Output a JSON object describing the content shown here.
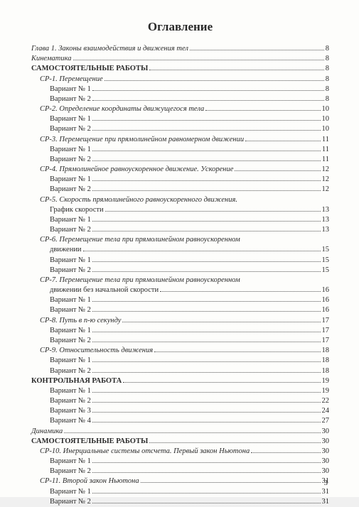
{
  "title": "Оглавление",
  "pageNumber": "3",
  "text_color": "#2a2a2a",
  "background_color": "#fdfdfb",
  "fonts": {
    "title_size": 17,
    "line_size": 10.5
  },
  "lines": [
    {
      "label": "Глава 1. Законы взаимодействия и движения тел",
      "page": "8",
      "italic": true,
      "indent": 0
    },
    {
      "label": "Кинематика",
      "page": "8",
      "italic": true,
      "indent": 0
    },
    {
      "label": "САМОСТОЯТЕЛЬНЫЕ РАБОТЫ",
      "page": "8",
      "bold": true,
      "indent": 0
    },
    {
      "label": "СР-1. Перемещение",
      "page": "8",
      "italic": true,
      "indent": 1,
      "prefixItalic": true
    },
    {
      "label": "Вариант № 1",
      "page": "8",
      "indent": 2
    },
    {
      "label": "Вариант № 2",
      "page": "8",
      "indent": 2
    },
    {
      "label": "СР-2. Определение координаты движущегося тела",
      "page": "10",
      "italic": true,
      "indent": 1,
      "prefixItalic": true
    },
    {
      "label": "Вариант № 1",
      "page": "10",
      "indent": 2
    },
    {
      "label": "Вариант № 2",
      "page": "10",
      "indent": 2
    },
    {
      "label": "СР-3. Перемещение при прямолинейном равномерном движении",
      "page": "11",
      "italic": true,
      "indent": 1,
      "prefixItalic": true
    },
    {
      "label": "Вариант № 1",
      "page": "11",
      "indent": 2
    },
    {
      "label": "Вариант № 2",
      "page": "11",
      "indent": 2
    },
    {
      "label": "СР-4. Прямолинейное равноускоренное движение. Ускорение",
      "page": "12",
      "italic": true,
      "indent": 1,
      "prefixItalic": true
    },
    {
      "label": "Вариант № 1",
      "page": "12",
      "indent": 2
    },
    {
      "label": "Вариант № 2",
      "page": "12",
      "indent": 2
    },
    {
      "label": "СР-5. Скорость прямолинейного равноускоренного движения.",
      "page": "",
      "italic": true,
      "indent": 1,
      "prefixItalic": true,
      "noDots": true
    },
    {
      "label": "График скорости",
      "page": "13",
      "indent": 2
    },
    {
      "label": "Вариант № 1",
      "page": "13",
      "indent": 2
    },
    {
      "label": "Вариант № 2",
      "page": "13",
      "indent": 2
    },
    {
      "label": "СР-6. Перемещение тела при прямолинейном равноускоренном",
      "page": "",
      "italic": true,
      "indent": 1,
      "prefixItalic": true,
      "noDots": true
    },
    {
      "label": "движении",
      "page": "15",
      "indent": 2
    },
    {
      "label": "Вариант № 1",
      "page": "15",
      "indent": 2
    },
    {
      "label": "Вариант № 2",
      "page": "15",
      "indent": 2
    },
    {
      "label": "СР-7. Перемещение тела при прямолинейном равноускоренном",
      "page": "",
      "italic": true,
      "indent": 1,
      "prefixItalic": true,
      "noDots": true
    },
    {
      "label": "движении без начальной скорости",
      "page": "16",
      "indent": 2
    },
    {
      "label": "Вариант № 1",
      "page": "16",
      "indent": 2
    },
    {
      "label": "Вариант № 2",
      "page": "16",
      "indent": 2
    },
    {
      "label": "СР-8. Путь в n-ю секунду",
      "page": "17",
      "italic": true,
      "indent": 1,
      "prefixItalic": true
    },
    {
      "label": "Вариант № 1",
      "page": "17",
      "indent": 2
    },
    {
      "label": "Вариант № 2",
      "page": "17",
      "indent": 2
    },
    {
      "label": "СР-9. Относительность движения",
      "page": "18",
      "italic": true,
      "indent": 1,
      "prefixItalic": true
    },
    {
      "label": "Вариант № 1",
      "page": "18",
      "indent": 2
    },
    {
      "label": "Вариант № 2",
      "page": "18",
      "indent": 2
    },
    {
      "label": "КОНТРОЛЬНАЯ РАБОТА",
      "page": "19",
      "bold": true,
      "indent": 0
    },
    {
      "label": "Вариант № 1",
      "page": "19",
      "indent": 2
    },
    {
      "label": "Вариант № 2",
      "page": "22",
      "indent": 2
    },
    {
      "label": "Вариант № 3",
      "page": "24",
      "indent": 2
    },
    {
      "label": "Вариант № 4",
      "page": "27",
      "indent": 2
    },
    {
      "label": "Динамика",
      "page": "30",
      "italic": true,
      "indent": 0
    },
    {
      "label": "САМОСТОЯТЕЛЬНЫЕ РАБОТЫ",
      "page": "30",
      "bold": true,
      "indent": 0
    },
    {
      "label": "СР-10. Инерциальные системы отсчета. Первый закон Ньютона",
      "page": "30",
      "italic": true,
      "indent": 1,
      "prefixItalic": true
    },
    {
      "label": "Вариант № 1",
      "page": "30",
      "indent": 2
    },
    {
      "label": "Вариант № 2",
      "page": "30",
      "indent": 2
    },
    {
      "label": "СР-11. Второй закон Ньютона",
      "page": "31",
      "italic": true,
      "indent": 1,
      "prefixItalic": true
    },
    {
      "label": "Вариант № 1",
      "page": "31",
      "indent": 2
    },
    {
      "label": "Вариант № 2",
      "page": "31",
      "indent": 2
    }
  ]
}
